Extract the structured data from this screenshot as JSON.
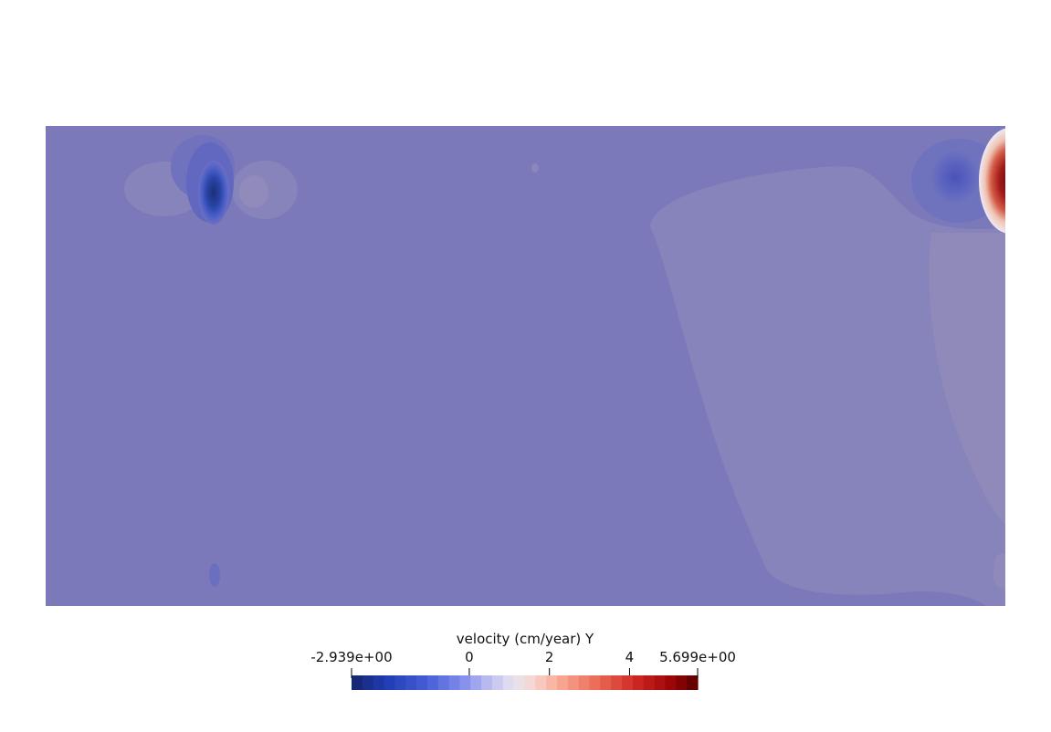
{
  "chart_data": {
    "type": "heatmap",
    "title": "",
    "colorbar": {
      "title": "velocity (cm/year) Y",
      "min_label": "-2.939e+00",
      "max_label": "5.699e+00",
      "range": [
        -2.939,
        5.699
      ],
      "ticks": [
        {
          "value": 0,
          "label": "0"
        },
        {
          "value": 2,
          "label": "2"
        },
        {
          "value": 4,
          "label": "4"
        }
      ],
      "colormap": "cool-to-warm (discrete)",
      "colors": {
        "low": "#1a2a6c",
        "mid": "#f2eef0",
        "high": "#5a0000",
        "background_field": "#7b79ba",
        "light_region": "#8a86bc"
      }
    },
    "features": [
      {
        "name": "strong negative anomaly",
        "location": "upper-left",
        "value_approx": -2.9
      },
      {
        "name": "strong positive anomaly",
        "location": "upper-right edge",
        "value_approx": 5.7
      },
      {
        "name": "moderate negative anomaly",
        "location": "upper-right",
        "value_approx": -1.5
      }
    ]
  }
}
